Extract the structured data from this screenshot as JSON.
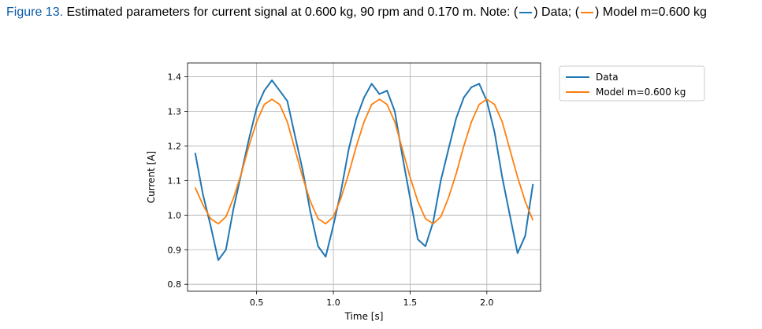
{
  "caption": {
    "label": "Figure 13.",
    "text_before": "Estimated parameters for current signal at 0.600 kg, 90 rpm and 0.170 m. Note: (",
    "text_mid": ") Data; (",
    "text_after": ") Model m=0.600 kg"
  },
  "colors": {
    "data": "#1f77b4",
    "model": "#ff7f0e",
    "grid": "#b0b0b0",
    "axis": "#000000"
  },
  "chart_data": {
    "type": "line",
    "title": "",
    "xlabel": "Time [s]",
    "ylabel": "Current [A]",
    "xlim": [
      0.05,
      2.35
    ],
    "ylim": [
      0.78,
      1.44
    ],
    "xticks": [
      0.5,
      1.0,
      1.5,
      2.0
    ],
    "xtick_labels": [
      "0.5",
      "1.0",
      "1.5",
      "2.0"
    ],
    "yticks": [
      0.8,
      0.9,
      1.0,
      1.1,
      1.2,
      1.3,
      1.4
    ],
    "ytick_labels": [
      "0.8",
      "0.9",
      "1.0",
      "1.1",
      "1.2",
      "1.3",
      "1.4"
    ],
    "grid": true,
    "legend_position": "outside-top-right",
    "series": [
      {
        "name": "Data",
        "color": "#1f77b4",
        "x": [
          0.1,
          0.15,
          0.2,
          0.25,
          0.3,
          0.35,
          0.4,
          0.45,
          0.5,
          0.55,
          0.6,
          0.65,
          0.7,
          0.75,
          0.8,
          0.85,
          0.9,
          0.95,
          1.0,
          1.05,
          1.1,
          1.15,
          1.2,
          1.25,
          1.3,
          1.35,
          1.4,
          1.45,
          1.5,
          1.55,
          1.6,
          1.65,
          1.7,
          1.75,
          1.8,
          1.85,
          1.9,
          1.95,
          2.0,
          2.05,
          2.1,
          2.15,
          2.2,
          2.25,
          2.3
        ],
        "y": [
          1.18,
          1.06,
          0.97,
          0.87,
          0.9,
          1.02,
          1.12,
          1.22,
          1.31,
          1.36,
          1.39,
          1.36,
          1.33,
          1.23,
          1.13,
          1.01,
          0.91,
          0.88,
          0.97,
          1.07,
          1.19,
          1.28,
          1.34,
          1.38,
          1.35,
          1.36,
          1.3,
          1.17,
          1.05,
          0.93,
          0.91,
          0.98,
          1.1,
          1.19,
          1.28,
          1.34,
          1.37,
          1.38,
          1.33,
          1.24,
          1.11,
          1.0,
          0.89,
          0.94,
          1.09
        ]
      },
      {
        "name": "Model m=0.600 kg",
        "color": "#ff7f0e",
        "x": [
          0.1,
          0.15,
          0.2,
          0.25,
          0.3,
          0.35,
          0.4,
          0.45,
          0.5,
          0.55,
          0.6,
          0.65,
          0.7,
          0.75,
          0.8,
          0.85,
          0.9,
          0.95,
          1.0,
          1.05,
          1.1,
          1.15,
          1.2,
          1.25,
          1.3,
          1.35,
          1.4,
          1.45,
          1.5,
          1.55,
          1.6,
          1.65,
          1.7,
          1.75,
          1.8,
          1.85,
          1.9,
          1.95,
          2.0,
          2.05,
          2.1,
          2.15,
          2.2,
          2.25,
          2.3
        ],
        "y": [
          1.08,
          1.03,
          0.99,
          0.975,
          0.995,
          1.05,
          1.12,
          1.2,
          1.27,
          1.32,
          1.335,
          1.32,
          1.27,
          1.19,
          1.11,
          1.04,
          0.99,
          0.975,
          0.995,
          1.05,
          1.12,
          1.2,
          1.27,
          1.32,
          1.335,
          1.32,
          1.27,
          1.19,
          1.11,
          1.04,
          0.99,
          0.975,
          0.995,
          1.05,
          1.12,
          1.2,
          1.27,
          1.32,
          1.335,
          1.32,
          1.27,
          1.19,
          1.11,
          1.04,
          0.985
        ]
      }
    ]
  }
}
